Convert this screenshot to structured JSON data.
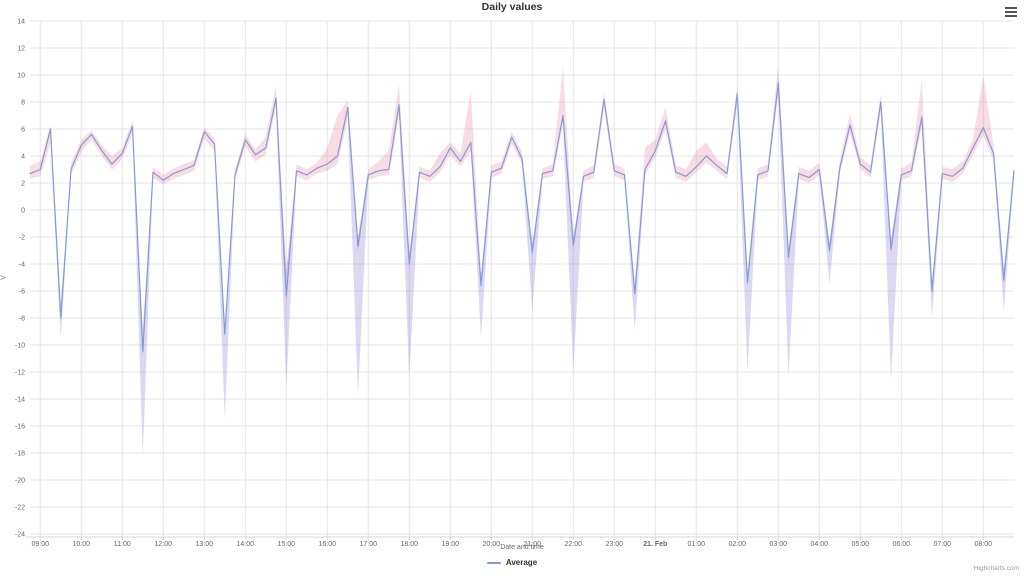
{
  "chart_data": {
    "type": "line",
    "title": "Daily values",
    "xlabel": "Date and time",
    "ylabel": "V",
    "credits": "Highcharts.com",
    "legend": [
      {
        "label": "Average",
        "type": "line"
      }
    ],
    "legend_position": "bottom-center",
    "grid": true,
    "ylim": [
      -24,
      14
    ],
    "y_ticks": [
      14,
      12,
      10,
      8,
      6,
      4,
      2,
      0,
      -2,
      -4,
      -6,
      -8,
      -10,
      -12,
      -14,
      -16,
      -18,
      -20,
      -22,
      -24
    ],
    "x_start": "08:45",
    "x_step_minutes": 15,
    "x_tick_labels": [
      "09:00",
      "10:00",
      "11:00",
      "12:00",
      "13:00",
      "14:00",
      "15:00",
      "16:00",
      "17:00",
      "18:00",
      "19:00",
      "20:00",
      "21:00",
      "22:00",
      "23:00",
      "21. Feb",
      "01:00",
      "02:00",
      "03:00",
      "04:00",
      "05:00",
      "06:00",
      "07:00",
      "08:00"
    ],
    "style": {
      "line_color": "#849bd8",
      "range_color": "#e46e91",
      "range_opacity": 0.25,
      "extreme_color": "#8f7fd4",
      "extreme_opacity": 0.3,
      "grid_color": "#e6e6e6",
      "axis_line_color": "#ccd6eb",
      "label_color": "#666666",
      "title_color": "#333333",
      "credits_color": "#999999"
    },
    "series": [
      {
        "name": "Average",
        "type": "line",
        "values": [
          2.7,
          3.0,
          6.0,
          -8.0,
          3.0,
          4.8,
          5.6,
          4.4,
          3.4,
          4.2,
          6.2,
          -10.5,
          2.8,
          2.2,
          2.7,
          3.0,
          3.3,
          5.8,
          4.9,
          -9.2,
          2.6,
          5.2,
          4.1,
          4.6,
          8.3,
          -6.4,
          2.9,
          2.6,
          3.1,
          3.4,
          4.0,
          7.6,
          -2.7,
          2.6,
          2.9,
          3.0,
          7.8,
          -4.0,
          2.8,
          2.5,
          3.2,
          4.6,
          3.6,
          5.0,
          -5.6,
          2.8,
          3.1,
          5.4,
          3.8,
          -3.1,
          2.7,
          2.9,
          7.0,
          -2.6,
          2.5,
          2.8,
          8.2,
          2.9,
          2.6,
          -6.2,
          3.0,
          4.4,
          6.6,
          2.8,
          2.5,
          3.2,
          4.0,
          3.3,
          2.7,
          8.6,
          -5.4,
          2.6,
          2.9,
          9.4,
          -3.5,
          2.7,
          2.4,
          3.0,
          -3.0,
          3.1,
          6.3,
          3.4,
          2.8,
          8.0,
          -2.9,
          2.6,
          2.9,
          6.9,
          -6.0,
          2.7,
          2.5,
          3.1,
          4.6,
          6.1,
          4.2,
          -5.2,
          2.9
        ]
      },
      {
        "name": "Range",
        "type": "arearange",
        "high": [
          3.3,
          3.6,
          6.3,
          -7.0,
          3.4,
          5.2,
          5.9,
          4.8,
          4.0,
          4.6,
          6.6,
          -9.0,
          3.2,
          2.6,
          3.1,
          3.4,
          3.7,
          6.1,
          5.3,
          -8.5,
          3.0,
          5.6,
          4.5,
          5.4,
          9.2,
          -4.5,
          3.4,
          3.0,
          3.5,
          4.6,
          7.0,
          8.1,
          -2.0,
          3.0,
          3.6,
          4.4,
          9.3,
          -3.2,
          3.2,
          2.9,
          4.2,
          5.0,
          4.2,
          8.8,
          -4.8,
          3.3,
          3.6,
          5.8,
          4.3,
          -2.5,
          3.1,
          3.4,
          10.6,
          -2.0,
          2.9,
          3.3,
          8.7,
          3.4,
          3.1,
          -5.5,
          4.6,
          5.2,
          7.6,
          3.3,
          3.0,
          4.4,
          5.0,
          3.8,
          3.2,
          9.2,
          -4.6,
          3.1,
          3.4,
          10.8,
          -2.8,
          3.2,
          2.9,
          3.5,
          -2.4,
          3.7,
          7.1,
          3.9,
          3.3,
          8.6,
          -2.2,
          3.1,
          3.5,
          9.6,
          -5.2,
          3.2,
          3.0,
          3.6,
          5.2,
          9.9,
          4.8,
          -4.4,
          3.4
        ],
        "low": [
          2.3,
          2.5,
          5.0,
          -8.3,
          2.6,
          4.3,
          5.2,
          4.0,
          3.0,
          3.8,
          5.6,
          -11.0,
          2.4,
          1.9,
          2.3,
          2.6,
          2.9,
          5.3,
          4.4,
          -9.5,
          2.2,
          4.7,
          3.6,
          4.1,
          7.6,
          -7.0,
          2.5,
          2.2,
          2.7,
          2.9,
          3.4,
          6.8,
          -3.2,
          2.2,
          2.5,
          2.6,
          7.0,
          -4.5,
          2.4,
          2.1,
          2.8,
          4.1,
          3.2,
          4.4,
          -6.0,
          2.4,
          2.7,
          4.9,
          3.4,
          -3.5,
          2.3,
          2.5,
          6.3,
          -3.0,
          2.1,
          2.4,
          7.5,
          2.5,
          2.2,
          -6.6,
          2.6,
          3.9,
          6.0,
          2.4,
          2.1,
          2.8,
          3.5,
          2.9,
          2.3,
          7.8,
          -5.8,
          2.2,
          2.5,
          8.6,
          -4.0,
          2.3,
          2.0,
          2.6,
          -3.4,
          2.7,
          5.7,
          3.0,
          2.4,
          7.3,
          -3.4,
          2.2,
          2.5,
          6.2,
          -6.4,
          2.3,
          2.1,
          2.7,
          4.1,
          5.5,
          3.7,
          -5.6,
          2.5
        ]
      },
      {
        "name": "Extremes",
        "type": "arearange",
        "low": [
          null,
          null,
          null,
          -9.5,
          null,
          null,
          null,
          null,
          null,
          null,
          null,
          -18.3,
          null,
          null,
          null,
          null,
          null,
          null,
          null,
          -15.5,
          null,
          null,
          null,
          null,
          null,
          -13.2,
          null,
          null,
          null,
          null,
          null,
          null,
          -13.8,
          null,
          null,
          null,
          null,
          -12.5,
          null,
          null,
          null,
          null,
          null,
          null,
          -9.5,
          null,
          null,
          null,
          null,
          -7.5,
          null,
          null,
          null,
          -12.0,
          null,
          null,
          null,
          null,
          null,
          -9.0,
          null,
          null,
          null,
          null,
          null,
          null,
          null,
          null,
          null,
          null,
          -12.0,
          null,
          null,
          null,
          -12.4,
          null,
          null,
          null,
          -5.5,
          null,
          null,
          null,
          null,
          null,
          -12.6,
          null,
          null,
          null,
          -8.0,
          null,
          null,
          null,
          null,
          null,
          null,
          -7.5,
          null
        ]
      }
    ]
  }
}
